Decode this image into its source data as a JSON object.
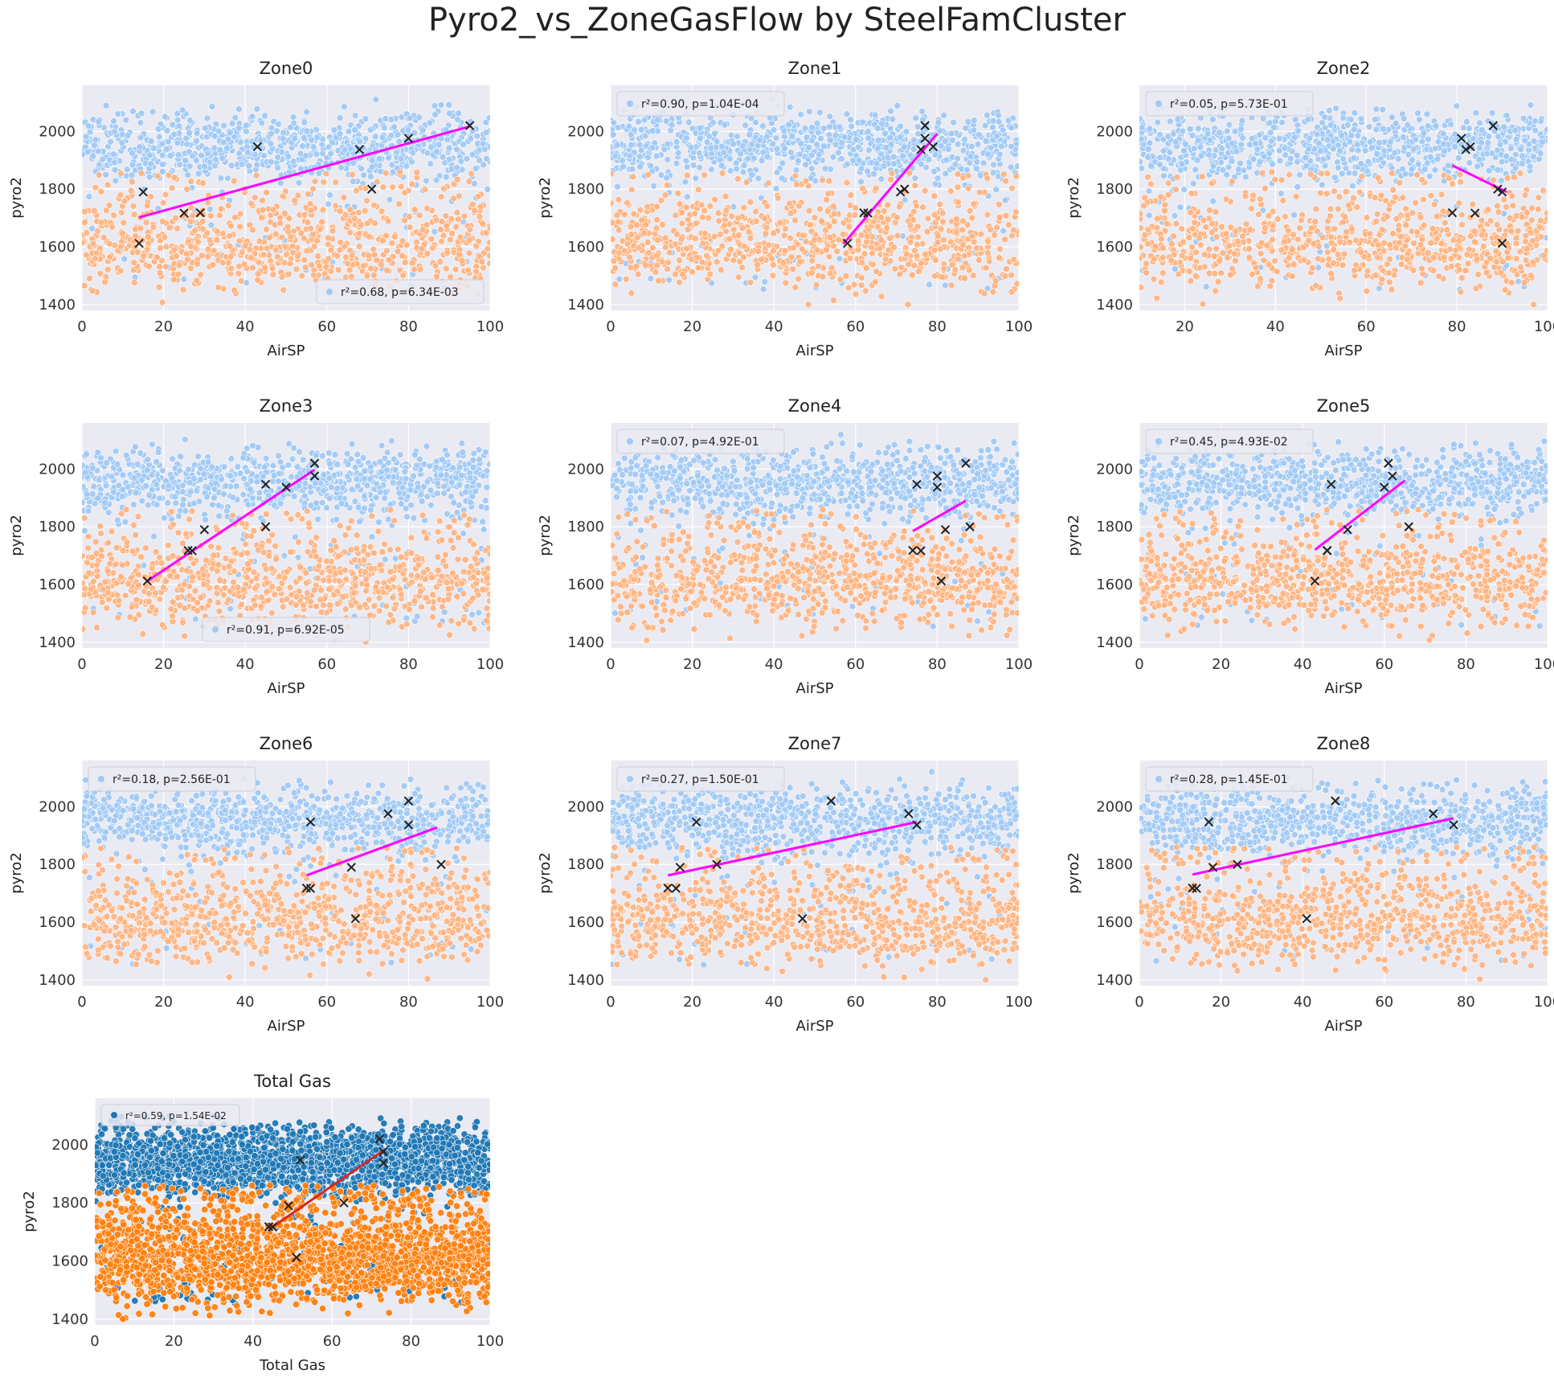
{
  "figure": {
    "suptitle": "Pyro2_vs_ZoneGasFlow by SteelFamCluster",
    "colors": {
      "background": "#eaeaf2",
      "grid": "#ffffff",
      "cluster_high": "#a1c9f4",
      "cluster_low": "#ffb482",
      "total_high": "#1f77b4",
      "total_low": "#ff7f0e",
      "zone_fit_line": "#ff00ff",
      "total_fit_line": "#d62728",
      "markers": "#222222"
    }
  },
  "chart_data": [
    {
      "type": "scatter",
      "title": "Zone0",
      "xlabel": "AirSP",
      "ylabel": "pyro2",
      "xlim": [
        0,
        100
      ],
      "ylim": [
        1380,
        2160
      ],
      "xticks": [
        0,
        20,
        40,
        60,
        80,
        100
      ],
      "yticks": [
        1400,
        1600,
        1800,
        2000
      ],
      "legend": {
        "text": "r²=0.68, p=6.34E-03",
        "loc": "lower right"
      },
      "fit_line": [
        [
          14,
          1702
        ],
        [
          95,
          2017
        ]
      ],
      "x_markers": [
        [
          14,
          1612
        ],
        [
          15,
          1790
        ],
        [
          25,
          1717
        ],
        [
          29,
          1718
        ],
        [
          43,
          1947
        ],
        [
          68,
          1937
        ],
        [
          71,
          1800
        ],
        [
          80,
          1976
        ],
        [
          95,
          2020
        ]
      ]
    },
    {
      "type": "scatter",
      "title": "Zone1",
      "xlabel": "AirSP",
      "ylabel": "pyro2",
      "xlim": [
        0,
        100
      ],
      "ylim": [
        1380,
        2160
      ],
      "xticks": [
        0,
        20,
        40,
        60,
        80,
        100
      ],
      "yticks": [
        1400,
        1600,
        1800,
        2000
      ],
      "legend": {
        "text": "r²=0.90, p=1.04E-04",
        "loc": "upper left"
      },
      "fit_line": [
        [
          57,
          1610
        ],
        [
          80,
          1992
        ]
      ],
      "x_markers": [
        [
          58,
          1612
        ],
        [
          62,
          1718
        ],
        [
          63,
          1717
        ],
        [
          71,
          1790
        ],
        [
          72,
          1800
        ],
        [
          76,
          1937
        ],
        [
          77,
          1976
        ],
        [
          77,
          2020
        ],
        [
          79,
          1947
        ]
      ]
    },
    {
      "type": "scatter",
      "title": "Zone2",
      "xlabel": "AirSP",
      "ylabel": "pyro2",
      "xlim": [
        10,
        100
      ],
      "ylim": [
        1380,
        2160
      ],
      "xticks": [
        20,
        40,
        60,
        80,
        100
      ],
      "yticks": [
        1400,
        1600,
        1800,
        2000
      ],
      "legend": {
        "text": "r²=0.05, p=5.73E-01",
        "loc": "upper left"
      },
      "fit_line": [
        [
          79,
          1882
        ],
        [
          91,
          1790
        ]
      ],
      "x_markers": [
        [
          79,
          1718
        ],
        [
          81,
          1976
        ],
        [
          82,
          1937
        ],
        [
          83,
          1947
        ],
        [
          84,
          1717
        ],
        [
          88,
          2020
        ],
        [
          89,
          1800
        ],
        [
          90,
          1790
        ],
        [
          90,
          1612
        ]
      ]
    },
    {
      "type": "scatter",
      "title": "Zone3",
      "xlabel": "AirSP",
      "ylabel": "pyro2",
      "xlim": [
        0,
        100
      ],
      "ylim": [
        1380,
        2160
      ],
      "xticks": [
        0,
        20,
        40,
        60,
        80,
        100
      ],
      "yticks": [
        1400,
        1600,
        1800,
        2000
      ],
      "legend": {
        "text": "r²=0.91, p=6.92E-05",
        "loc": "lower center"
      },
      "fit_line": [
        [
          16,
          1612
        ],
        [
          57,
          1998
        ]
      ],
      "x_markers": [
        [
          16,
          1612
        ],
        [
          26,
          1718
        ],
        [
          27,
          1717
        ],
        [
          30,
          1790
        ],
        [
          45,
          1947
        ],
        [
          45,
          1800
        ],
        [
          50,
          1937
        ],
        [
          57,
          1976
        ],
        [
          57,
          2020
        ]
      ]
    },
    {
      "type": "scatter",
      "title": "Zone4",
      "xlabel": "AirSP",
      "ylabel": "pyro2",
      "xlim": [
        0,
        100
      ],
      "ylim": [
        1380,
        2160
      ],
      "xticks": [
        0,
        20,
        40,
        60,
        80,
        100
      ],
      "yticks": [
        1400,
        1600,
        1800,
        2000
      ],
      "legend": {
        "text": "r²=0.07, p=4.92E-01",
        "loc": "upper left"
      },
      "fit_line": [
        [
          74,
          1785
        ],
        [
          87,
          1890
        ]
      ],
      "x_markers": [
        [
          74,
          1718
        ],
        [
          75,
          1947
        ],
        [
          76,
          1717
        ],
        [
          80,
          1976
        ],
        [
          80,
          1937
        ],
        [
          81,
          1612
        ],
        [
          82,
          1790
        ],
        [
          87,
          2020
        ],
        [
          88,
          1800
        ]
      ]
    },
    {
      "type": "scatter",
      "title": "Zone5",
      "xlabel": "AirSP",
      "ylabel": "pyro2",
      "xlim": [
        0,
        100
      ],
      "ylim": [
        1380,
        2160
      ],
      "xticks": [
        0,
        20,
        40,
        60,
        80,
        100
      ],
      "yticks": [
        1400,
        1600,
        1800,
        2000
      ],
      "legend": {
        "text": "r²=0.45, p=4.93E-02",
        "loc": "upper left"
      },
      "fit_line": [
        [
          43,
          1720
        ],
        [
          65,
          1960
        ]
      ],
      "x_markers": [
        [
          43,
          1612
        ],
        [
          46,
          1718
        ],
        [
          47,
          1947
        ],
        [
          46,
          1717
        ],
        [
          51,
          1790
        ],
        [
          60,
          1937
        ],
        [
          61,
          2020
        ],
        [
          62,
          1976
        ],
        [
          66,
          1800
        ]
      ]
    },
    {
      "type": "scatter",
      "title": "Zone6",
      "xlabel": "AirSP",
      "ylabel": "pyro2",
      "xlim": [
        0,
        100
      ],
      "ylim": [
        1380,
        2160
      ],
      "xticks": [
        0,
        20,
        40,
        60,
        80,
        100
      ],
      "yticks": [
        1400,
        1600,
        1800,
        2000
      ],
      "legend": {
        "text": "r²=0.18, p=2.56E-01",
        "loc": "upper left"
      },
      "fit_line": [
        [
          55,
          1762
        ],
        [
          87,
          1928
        ]
      ],
      "x_markers": [
        [
          55,
          1718
        ],
        [
          56,
          1717
        ],
        [
          56,
          1947
        ],
        [
          66,
          1790
        ],
        [
          67,
          1612
        ],
        [
          75,
          1976
        ],
        [
          80,
          2020
        ],
        [
          80,
          1937
        ],
        [
          88,
          1800
        ]
      ]
    },
    {
      "type": "scatter",
      "title": "Zone7",
      "xlabel": "AirSP",
      "ylabel": "pyro2",
      "xlim": [
        0,
        100
      ],
      "ylim": [
        1380,
        2160
      ],
      "xticks": [
        0,
        20,
        40,
        60,
        80,
        100
      ],
      "yticks": [
        1400,
        1600,
        1800,
        2000
      ],
      "legend": {
        "text": "r²=0.27, p=1.50E-01",
        "loc": "upper left"
      },
      "fit_line": [
        [
          14,
          1762
        ],
        [
          75,
          1947
        ]
      ],
      "x_markers": [
        [
          14,
          1718
        ],
        [
          16,
          1717
        ],
        [
          17,
          1790
        ],
        [
          21,
          1947
        ],
        [
          26,
          1800
        ],
        [
          47,
          1612
        ],
        [
          54,
          2020
        ],
        [
          73,
          1976
        ],
        [
          75,
          1937
        ]
      ]
    },
    {
      "type": "scatter",
      "title": "Zone8",
      "xlabel": "AirSP",
      "ylabel": "pyro2",
      "xlim": [
        0,
        100
      ],
      "ylim": [
        1380,
        2160
      ],
      "xticks": [
        0,
        20,
        40,
        60,
        80,
        100
      ],
      "yticks": [
        1400,
        1600,
        1800,
        2000
      ],
      "legend": {
        "text": "r²=0.28, p=1.45E-01",
        "loc": "upper left"
      },
      "fit_line": [
        [
          13,
          1765
        ],
        [
          77,
          1960
        ]
      ],
      "x_markers": [
        [
          13,
          1718
        ],
        [
          14,
          1717
        ],
        [
          17,
          1947
        ],
        [
          18,
          1790
        ],
        [
          24,
          1800
        ],
        [
          41,
          1612
        ],
        [
          48,
          2020
        ],
        [
          72,
          1976
        ],
        [
          77,
          1937
        ]
      ]
    },
    {
      "type": "scatter",
      "title": "Total Gas",
      "xlabel": "Total Gas",
      "ylabel": "pyro2",
      "xlim": [
        0,
        100
      ],
      "ylim": [
        1380,
        2160
      ],
      "xticks": [
        0,
        20,
        40,
        60,
        80,
        100
      ],
      "yticks": [
        1400,
        1600,
        1800,
        2000
      ],
      "legend": {
        "text": "r²=0.59, p=1.54E-02",
        "loc": "upper left"
      },
      "fit_line": [
        [
          44,
          1708
        ],
        [
          73,
          1980
        ]
      ],
      "x_markers": [
        [
          44,
          1718
        ],
        [
          45,
          1717
        ],
        [
          49,
          1790
        ],
        [
          51,
          1612
        ],
        [
          52,
          1947
        ],
        [
          63,
          1800
        ],
        [
          72,
          2020
        ],
        [
          73,
          1976
        ],
        [
          73,
          1937
        ]
      ]
    }
  ]
}
